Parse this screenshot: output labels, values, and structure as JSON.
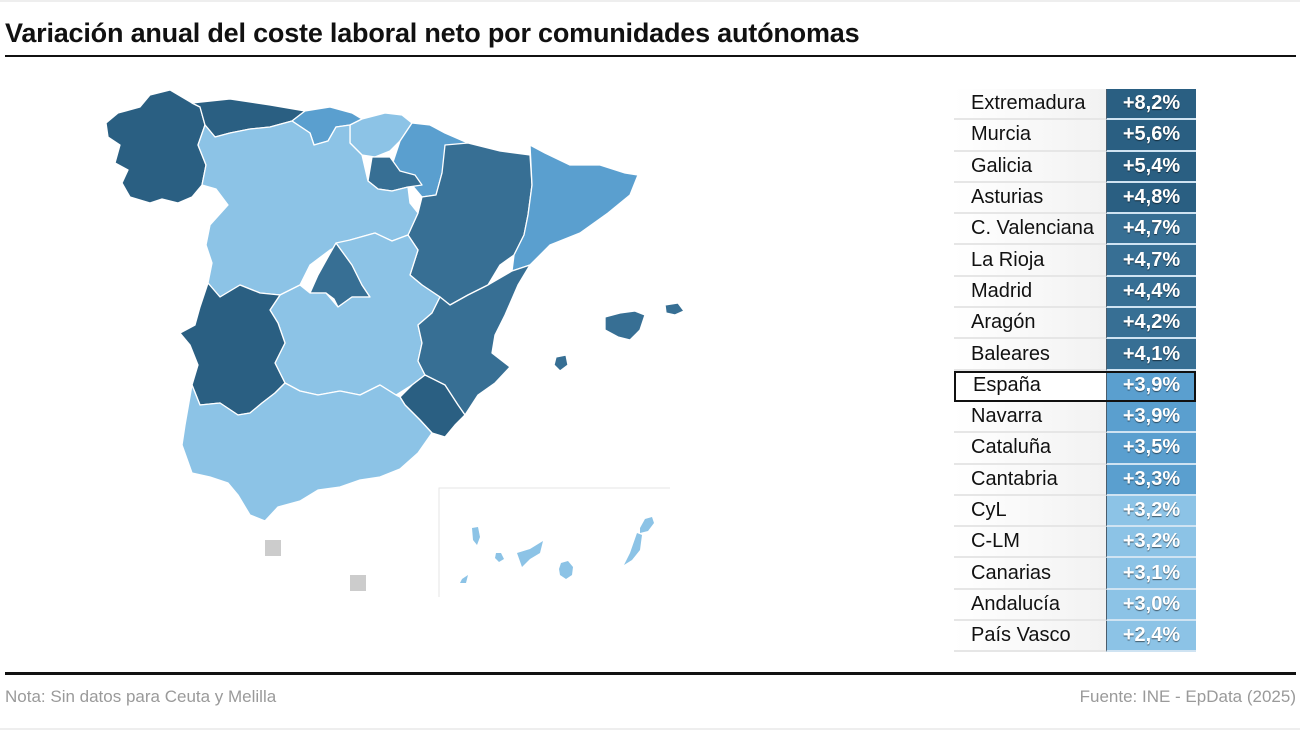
{
  "title": "Variación anual del coste laboral neto por comunidades autónomas",
  "footer": {
    "note": "Nota: Sin datos para Ceuta y Melilla",
    "source": "Fuente: INE - EpData (2025)"
  },
  "colors": {
    "scale_darkest": "#2a5f82",
    "scale_dark": "#376f94",
    "scale_mid": "#5a9fcf",
    "scale_light": "#8cc3e6",
    "nodata": "#cccccc",
    "highlight_border": "#111111"
  },
  "table": {
    "rows": [
      {
        "name": "Extremadura",
        "value": "+8,2%",
        "color": "#2a5f82"
      },
      {
        "name": "Murcia",
        "value": "+5,6%",
        "color": "#2a5f82"
      },
      {
        "name": "Galicia",
        "value": "+5,4%",
        "color": "#2a5f82"
      },
      {
        "name": "Asturias",
        "value": "+4,8%",
        "color": "#2a5f82"
      },
      {
        "name": "C. Valenciana",
        "value": "+4,7%",
        "color": "#376f94"
      },
      {
        "name": "La Rioja",
        "value": "+4,7%",
        "color": "#376f94"
      },
      {
        "name": "Madrid",
        "value": "+4,4%",
        "color": "#376f94"
      },
      {
        "name": "Aragón",
        "value": "+4,2%",
        "color": "#376f94"
      },
      {
        "name": "Baleares",
        "value": "+4,1%",
        "color": "#376f94"
      },
      {
        "name": "España",
        "value": "+3,9%",
        "color": "#5a9fcf",
        "highlight": true
      },
      {
        "name": "Navarra",
        "value": "+3,9%",
        "color": "#5a9fcf"
      },
      {
        "name": "Cataluña",
        "value": "+3,5%",
        "color": "#5a9fcf"
      },
      {
        "name": "Cantabria",
        "value": "+3,3%",
        "color": "#5a9fcf"
      },
      {
        "name": "CyL",
        "value": "+3,2%",
        "color": "#8cc3e6"
      },
      {
        "name": "C-LM",
        "value": "+3,2%",
        "color": "#8cc3e6"
      },
      {
        "name": "Canarias",
        "value": "+3,1%",
        "color": "#8cc3e6"
      },
      {
        "name": "Andalucía",
        "value": "+3,0%",
        "color": "#8cc3e6"
      },
      {
        "name": "País Vasco",
        "value": "+2,4%",
        "color": "#8cc3e6"
      }
    ]
  },
  "chart_data": {
    "type": "table",
    "title": "Variación anual del coste laboral neto por comunidades autónomas",
    "subtitle": "",
    "unit": "%",
    "categories": [
      "Extremadura",
      "Murcia",
      "Galicia",
      "Asturias",
      "C. Valenciana",
      "La Rioja",
      "Madrid",
      "Aragón",
      "Baleares",
      "España",
      "Navarra",
      "Cataluña",
      "Cantabria",
      "CyL",
      "C-LM",
      "Canarias",
      "Andalucía",
      "País Vasco"
    ],
    "values": [
      8.2,
      5.6,
      5.4,
      4.8,
      4.7,
      4.7,
      4.4,
      4.2,
      4.1,
      3.9,
      3.9,
      3.5,
      3.3,
      3.2,
      3.2,
      3.1,
      3.0,
      2.4
    ],
    "highlight": "España",
    "visual": "choropleth map of Spain by autonomous community + ranked value table",
    "map_regions": {
      "Galicia": 5.4,
      "Asturias": 4.8,
      "Cantabria": 3.3,
      "País Vasco": 2.4,
      "Navarra": 3.9,
      "La Rioja": 4.7,
      "Aragón": 4.2,
      "Cataluña": 3.5,
      "CyL": 3.2,
      "Madrid": 4.4,
      "C-LM": 3.2,
      "C. Valenciana": 4.7,
      "Extremadura": 8.2,
      "Andalucía": 3.0,
      "Murcia": 5.6,
      "Baleares": 4.1,
      "Canarias": 3.1
    },
    "no_data": [
      "Ceuta",
      "Melilla"
    ],
    "note": "Nota: Sin datos para Ceuta y Melilla",
    "source": "Fuente: INE - EpData (2025)"
  }
}
